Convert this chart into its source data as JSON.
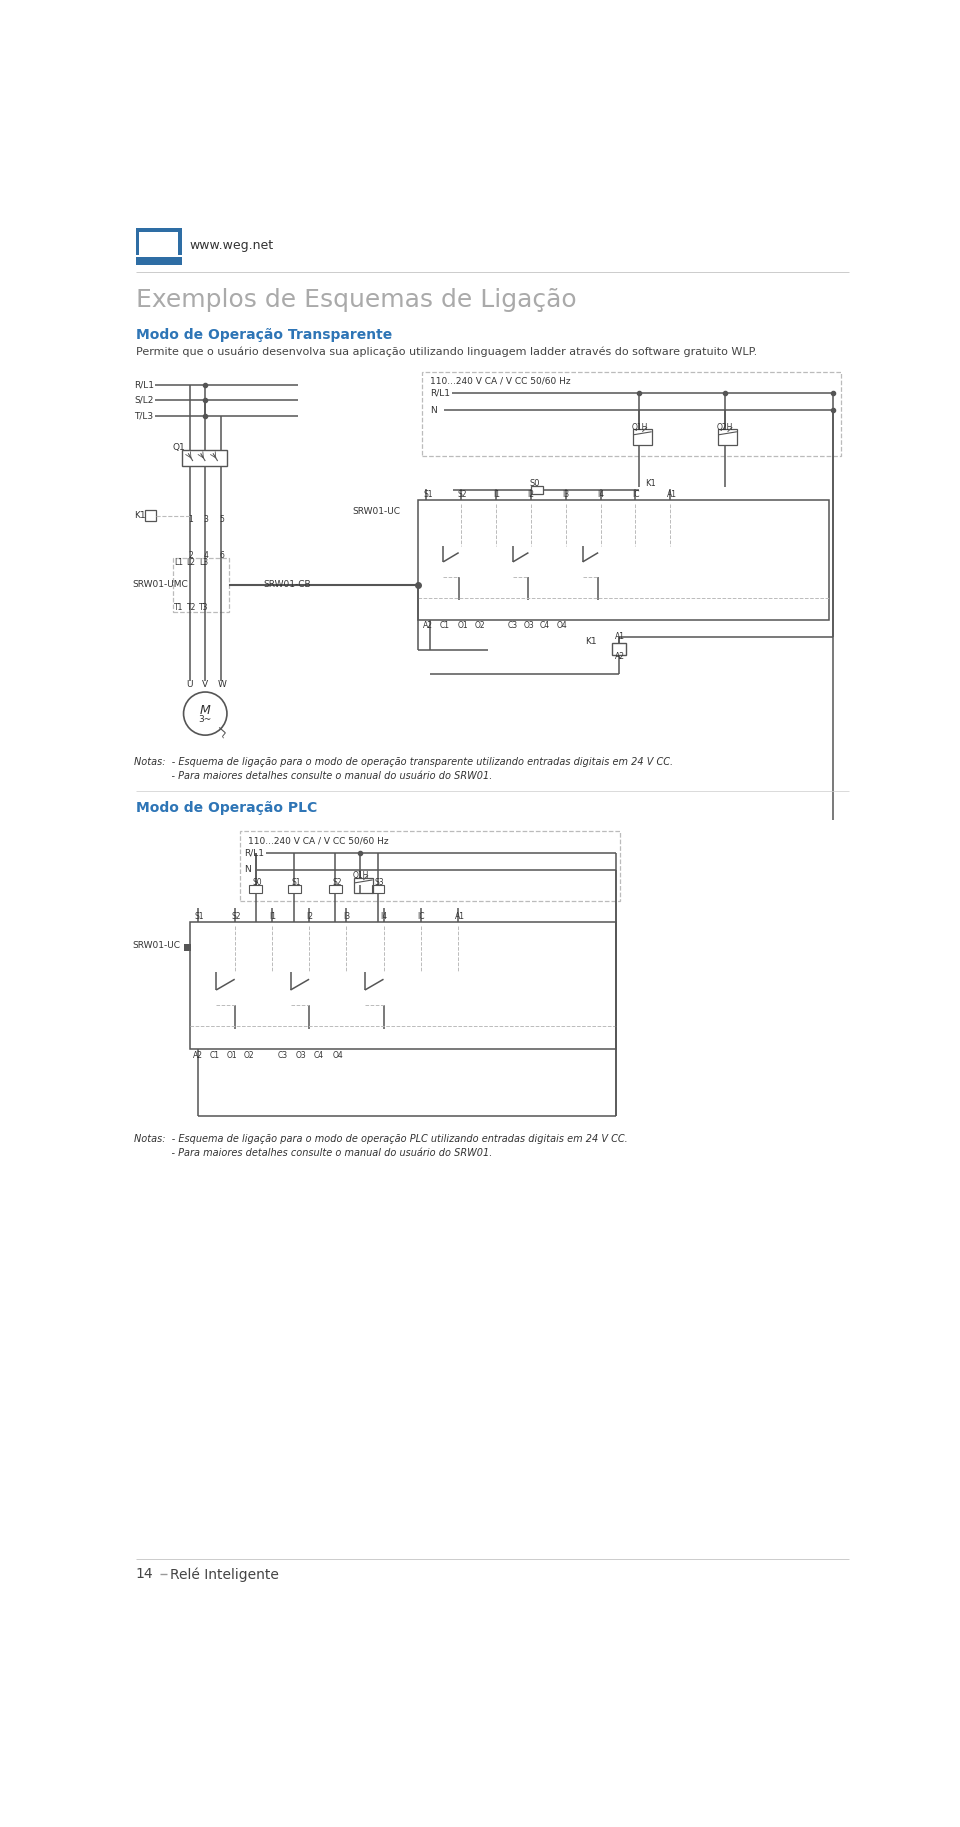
{
  "page_width": 9.6,
  "page_height": 18.27,
  "bg_color": "#ffffff",
  "weg_logo_color": "#2e6da4",
  "weg_url": "www.weg.net",
  "title_main": "Exemplos de Esquemas de Ligação",
  "title_main_color": "#aaaaaa",
  "title_main_size": 18,
  "section1_title": "Modo de Operação Transparente",
  "section1_color": "#2e75b6",
  "section1_size": 10,
  "section1_desc": "Permite que o usuário desenvolva sua aplicação utilizando linguagem ladder através do software gratuito WLP.",
  "section1_desc_size": 8,
  "section1_desc_color": "#444444",
  "notes1_line1": "Notas:  - Esquema de ligação para o modo de operação transparente utilizando entradas digitais em 24 V CC.",
  "notes1_line2": "            - Para maiores detalhes consulte o manual do usuário do SRW01.",
  "section2_title": "Modo de Operação PLC",
  "section2_color": "#2e75b6",
  "section2_size": 10,
  "notes2_line1": "Notas:  - Esquema de ligação para o modo de operação PLC utilizando entradas digitais em 24 V CC.",
  "notes2_line2": "            - Para maiores detalhes consulte o manual do usuário do SRW01.",
  "footer_num": "14",
  "footer_text": "Relé Inteligente",
  "footer_color": "#444444",
  "line_color": "#555555",
  "dashed_color": "#bbbbbb",
  "label_color": "#333333",
  "label_size": 7
}
